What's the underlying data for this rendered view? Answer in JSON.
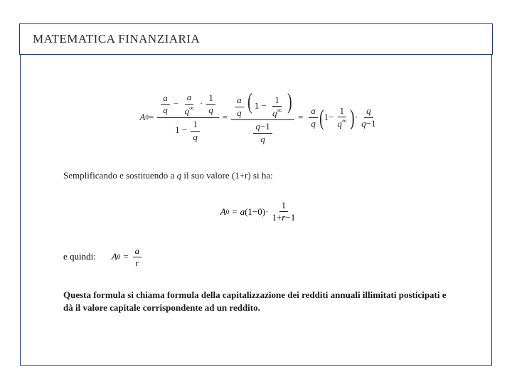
{
  "title": "MATEMATICA FINANZIARIA",
  "text1_before_q": "Semplificando e sostituendo a ",
  "text1_q": "q",
  "text1_after_q": " il suo valore (1+r) si ha:",
  "text2": "e quindi:",
  "boldText": "Questa formula si chiama formula della capitalizzazione dei redditi annuali illimitati posticipati e dà il valore capitale corrispondente ad un reddito.",
  "f1": {
    "A": "A",
    "zero": "0",
    "eq": "=",
    "a": "a",
    "q": "q",
    "one": "1",
    "inf": "∞",
    "minus": "−",
    "dot": "·",
    "r": "r"
  },
  "colors": {
    "border": "#1a3d6d",
    "text": "#222222",
    "bg": "#ffffff"
  },
  "typography": {
    "title_fontsize": 17,
    "body_fontsize": 13,
    "formula_fontsize": 13
  }
}
